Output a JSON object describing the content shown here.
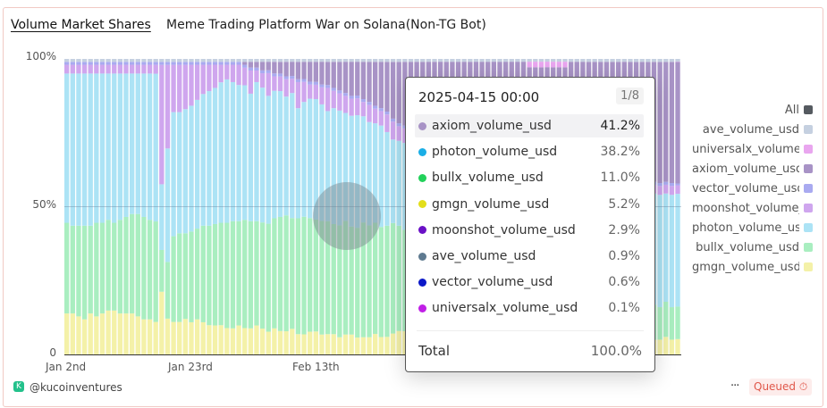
{
  "header": {
    "title": "Volume Market Shares",
    "subtitle": "Meme Trading Platform War on Solana(Non-TG Bot)"
  },
  "chart_data": {
    "type": "bar",
    "stacked": true,
    "normalized": true,
    "yticks": [
      "100%",
      "50%",
      "0"
    ],
    "xticks": [
      "Jan 2nd",
      "Jan 23rd",
      "Feb 13th"
    ],
    "x_start": "2025-01-02",
    "x_end": "2025-04-15",
    "x_step": "1 day",
    "ylim": [
      0,
      100
    ],
    "grid": "horizontal at 50%",
    "legend_position": "right",
    "series": [
      {
        "name": "gmgn_volume_usd",
        "color": "#f4f1a8",
        "values": [
          14,
          14,
          13,
          12,
          14,
          13,
          14,
          15,
          15,
          14,
          14,
          14,
          13,
          12,
          12,
          11,
          21,
          12,
          11,
          11,
          12,
          11,
          12,
          11,
          10,
          10,
          10,
          9,
          9,
          10,
          9,
          9,
          10,
          9,
          8,
          9,
          8,
          8,
          9,
          7,
          7,
          8,
          8,
          7,
          7,
          7,
          6,
          7,
          7,
          6,
          6,
          6,
          7,
          6,
          6,
          7,
          8,
          8,
          7,
          8,
          7,
          7,
          6,
          7,
          6,
          6,
          7,
          6,
          6,
          6,
          5,
          6,
          6,
          5,
          6,
          5,
          5,
          6,
          5,
          5,
          5,
          6,
          5,
          5,
          5,
          4,
          5,
          5,
          5,
          4,
          5,
          5,
          5,
          6,
          5,
          5,
          5,
          5,
          4,
          5,
          5,
          6,
          5,
          5.2
        ]
      },
      {
        "name": "bullx_volume_usd",
        "color": "#a9eec0",
        "values": [
          31,
          30,
          31,
          32,
          30,
          32,
          31,
          31,
          30,
          32,
          33,
          34,
          35,
          35,
          34,
          34,
          14,
          19,
          29,
          30,
          29,
          31,
          31,
          33,
          34,
          35,
          35,
          36,
          37,
          36,
          37,
          37,
          36,
          37,
          38,
          38,
          39,
          40,
          39,
          40,
          41,
          40,
          39,
          40,
          39,
          38,
          39,
          40,
          38,
          39,
          40,
          39,
          38,
          38,
          38,
          37,
          36,
          35,
          35,
          34,
          33,
          33,
          32,
          31,
          30,
          30,
          29,
          28,
          27,
          27,
          26,
          25,
          25,
          24,
          23,
          23,
          22,
          21,
          21,
          20,
          20,
          19,
          18,
          18,
          17,
          17,
          16,
          16,
          15,
          15,
          14,
          14,
          13,
          13,
          14,
          13,
          12,
          12,
          13,
          12,
          11,
          12,
          11,
          11
        ]
      },
      {
        "name": "photon_volume_usd",
        "color": "#ace3f5",
        "values": [
          51,
          52,
          52,
          52,
          52,
          51,
          51,
          50,
          51,
          50,
          49,
          48,
          48,
          49,
          50,
          50,
          22,
          38,
          42,
          41,
          42,
          43,
          44,
          45,
          46,
          47,
          48,
          49,
          48,
          47,
          46,
          44,
          48,
          47,
          45,
          44,
          43,
          41,
          44,
          38,
          40,
          42,
          42,
          41,
          38,
          40,
          40,
          38,
          39,
          40,
          37,
          36,
          34,
          35,
          32,
          28,
          29,
          30,
          31,
          32,
          32,
          33,
          33,
          34,
          34,
          35,
          34,
          35,
          35,
          36,
          36,
          36,
          37,
          36,
          37,
          37,
          38,
          37,
          38,
          38,
          37,
          38,
          38,
          39,
          38,
          38,
          39,
          38,
          37,
          38,
          38,
          37,
          38,
          37,
          38,
          38,
          37,
          38,
          37,
          38,
          38,
          37,
          38,
          38.2
        ]
      },
      {
        "name": "moonshot_volume_usd",
        "color": "#cfa6ee",
        "values": [
          3,
          3,
          3,
          3,
          3,
          3,
          3,
          3,
          3,
          3,
          3,
          3,
          3,
          3,
          3,
          3,
          40,
          28,
          16,
          16,
          15,
          14,
          12,
          10,
          9,
          8,
          6,
          5,
          6,
          7,
          6,
          8,
          4,
          5,
          8,
          5,
          5,
          6,
          5,
          9,
          7,
          5,
          5,
          6,
          8,
          6,
          6,
          6,
          6,
          6,
          5,
          6,
          5,
          5,
          6,
          6,
          5,
          5,
          5,
          4,
          4,
          4,
          4,
          4,
          4,
          3,
          3,
          3,
          3,
          3,
          3,
          3,
          3,
          3,
          3,
          3,
          3,
          3,
          3,
          3,
          3,
          3,
          3,
          3,
          3,
          3,
          3,
          3,
          3,
          3,
          3,
          3,
          3,
          3,
          3,
          3,
          3,
          3,
          3,
          3,
          3,
          3,
          3,
          2.9
        ]
      },
      {
        "name": "vector_volume_usd",
        "color": "#a9aaf0",
        "values": [
          1,
          1,
          1,
          1,
          1,
          1,
          1,
          1,
          1,
          1,
          1,
          1,
          1,
          1,
          1,
          1,
          1,
          1,
          1,
          1,
          1,
          1,
          1,
          1,
          1,
          1,
          1,
          1,
          1,
          1,
          1,
          1,
          1,
          1,
          1,
          1,
          1,
          1,
          1,
          1,
          1,
          1,
          1,
          1,
          1,
          1,
          1,
          1,
          1,
          1,
          1,
          1,
          1,
          1,
          1,
          1,
          1,
          1,
          1,
          1,
          1,
          1,
          1,
          1,
          1,
          1,
          1,
          1,
          1,
          1,
          1,
          1,
          1,
          1,
          1,
          1,
          1,
          1,
          1,
          1,
          1,
          1,
          1,
          1,
          1,
          1,
          1,
          1,
          1,
          1,
          1,
          1,
          1,
          1,
          1,
          1,
          1,
          1,
          1,
          1,
          1,
          1,
          1,
          0.6
        ]
      },
      {
        "name": "axiom_volume_usd",
        "color": "#a893c6",
        "values": [
          0,
          0,
          0,
          0,
          0,
          0,
          0,
          0,
          0,
          0,
          0,
          0,
          0,
          0,
          0,
          0,
          0,
          0,
          0,
          0,
          0,
          0,
          0,
          0,
          0,
          0,
          0,
          0,
          0,
          0,
          1,
          2,
          2,
          3,
          3,
          4,
          4,
          5,
          5,
          6,
          6,
          7,
          7,
          8,
          8,
          9,
          10,
          11,
          12,
          12,
          13,
          14,
          15,
          16,
          17,
          19,
          21,
          22,
          23,
          23,
          24,
          25,
          26,
          27,
          27,
          28,
          29,
          30,
          30,
          31,
          32,
          32,
          33,
          34,
          34,
          35,
          35,
          36,
          36,
          37,
          37,
          38,
          38,
          38,
          39,
          39,
          39,
          40,
          40,
          40,
          40,
          41,
          41,
          41,
          41,
          41,
          41,
          41,
          42,
          41,
          41,
          41,
          41,
          41.2
        ]
      },
      {
        "name": "universalx_volume_usd",
        "color": "#e9a6ef",
        "values": [
          0,
          0,
          0,
          0,
          0,
          0,
          0,
          0,
          0,
          0,
          0,
          0,
          0,
          0,
          0,
          0,
          0,
          0,
          0,
          0,
          0,
          0,
          0,
          0,
          0,
          0,
          0,
          0,
          0,
          0,
          0,
          0,
          0,
          0,
          0,
          0,
          0,
          0,
          0,
          0,
          0,
          0,
          0,
          0,
          0,
          0,
          0,
          0,
          0,
          0,
          0,
          0,
          0,
          0,
          0,
          0,
          0,
          0,
          0,
          0,
          0,
          0,
          0,
          0,
          0,
          0,
          0,
          0,
          0,
          0,
          0,
          0,
          0,
          0,
          0,
          0,
          0,
          0,
          2,
          2,
          2,
          2,
          2,
          2,
          2,
          0,
          0,
          0,
          0,
          0,
          0,
          0,
          0,
          0,
          0,
          0,
          0,
          0,
          0,
          0,
          0,
          0,
          0,
          0.1
        ]
      },
      {
        "name": "ave_volume_usd",
        "color": "#c5d0e0",
        "values": [
          1,
          1,
          1,
          1,
          1,
          1,
          1,
          1,
          1,
          1,
          1,
          1,
          1,
          1,
          1,
          1,
          1,
          1,
          1,
          1,
          1,
          1,
          1,
          1,
          1,
          1,
          1,
          1,
          1,
          1,
          1,
          1,
          1,
          1,
          1,
          1,
          1,
          1,
          1,
          1,
          1,
          1,
          1,
          1,
          1,
          1,
          1,
          1,
          1,
          1,
          1,
          1,
          1,
          1,
          1,
          1,
          1,
          1,
          1,
          1,
          1,
          1,
          1,
          1,
          1,
          1,
          1,
          1,
          1,
          1,
          1,
          1,
          1,
          1,
          1,
          1,
          1,
          1,
          1,
          1,
          1,
          1,
          1,
          1,
          1,
          1,
          1,
          1,
          1,
          1,
          1,
          1,
          1,
          1,
          1,
          1,
          1,
          1,
          1,
          1,
          1,
          1,
          1,
          0.9
        ]
      }
    ]
  },
  "legend": {
    "all_label": "All",
    "all_color": "#555a60",
    "items": [
      {
        "label": "ave_volume_usd",
        "color": "#c5d0e0"
      },
      {
        "label": "universalx_volume_usd",
        "color": "#e9a6ef"
      },
      {
        "label": "axiom_volume_usd",
        "color": "#a893c6"
      },
      {
        "label": "vector_volume_usd",
        "color": "#a9aaf0"
      },
      {
        "label": "moonshot_volume_usd",
        "color": "#cfa6ee"
      },
      {
        "label": "photon_volume_usd",
        "color": "#ace3f5"
      },
      {
        "label": "bullx_volume_usd",
        "color": "#a9eec0"
      },
      {
        "label": "gmgn_volume_usd",
        "color": "#f4f1a8"
      }
    ]
  },
  "tooltip": {
    "date": "2025-04-15 00:00",
    "page": "1/8",
    "rows": [
      {
        "label": "axiom_volume_usd",
        "value": "41.2%",
        "color": "#a893c6"
      },
      {
        "label": "photon_volume_usd",
        "value": "38.2%",
        "color": "#1aaee6"
      },
      {
        "label": "bullx_volume_usd",
        "value": "11.0%",
        "color": "#22d15a"
      },
      {
        "label": "gmgn_volume_usd",
        "value": "5.2%",
        "color": "#e3de1a"
      },
      {
        "label": "moonshot_volume_usd",
        "value": "2.9%",
        "color": "#6a10c6"
      },
      {
        "label": "ave_volume_usd",
        "value": "0.9%",
        "color": "#5e7a90"
      },
      {
        "label": "vector_volume_usd",
        "value": "0.6%",
        "color": "#0b18c8"
      },
      {
        "label": "universalx_volume_usd",
        "value": "0.1%",
        "color": "#c01fe6"
      }
    ],
    "total_label": "Total",
    "total_value": "100.0%"
  },
  "footer": {
    "user": "@kucoinventures",
    "more": "···",
    "status": "Queued"
  }
}
